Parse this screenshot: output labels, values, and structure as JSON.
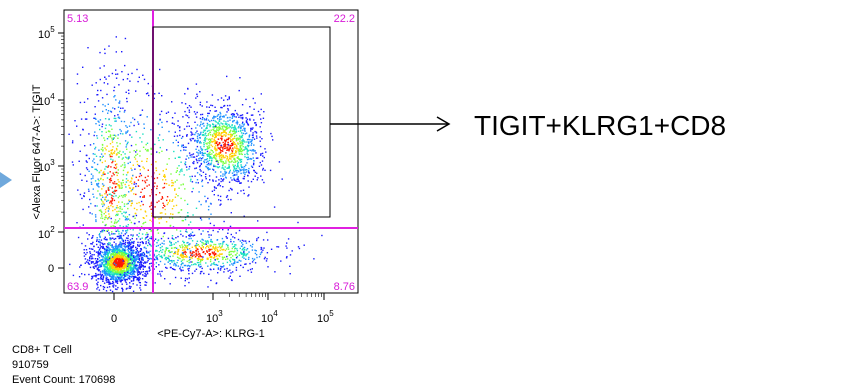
{
  "chart_data": {
    "type": "scatter",
    "subtype": "flow-cytometry-density-dot-plot",
    "xlabel": "<PE-Cy7-A>: KLRG-1",
    "ylabel": "<Alexa Fluor 647-A>: TIGIT",
    "x_scale": "biexponential",
    "y_scale": "biexponential",
    "x_ticks": [
      {
        "value": 0,
        "label": "0"
      },
      {
        "value": 1000,
        "label": "10",
        "exp": "3"
      },
      {
        "value": 10000,
        "label": "10",
        "exp": "4"
      },
      {
        "value": 100000,
        "label": "10",
        "exp": "5"
      }
    ],
    "y_ticks": [
      {
        "value": 0,
        "label": "0"
      },
      {
        "value": 100,
        "label": "10",
        "exp": "2"
      },
      {
        "value": 1000,
        "label": "10",
        "exp": "3"
      },
      {
        "value": 10000,
        "label": "10",
        "exp": "4"
      },
      {
        "value": 100000,
        "label": "10",
        "exp": "5"
      }
    ],
    "quadrant_threshold": {
      "x": 300,
      "y": 120
    },
    "quadrants": [
      {
        "position": "top-left",
        "value": "5.13"
      },
      {
        "position": "top-right",
        "value": "22.2"
      },
      {
        "position": "bottom-left",
        "value": "63.9"
      },
      {
        "position": "bottom-right",
        "value": "8.76"
      }
    ],
    "gate": {
      "x_min": 300,
      "x_max": 130000,
      "y_min": 180,
      "y_max": 130000,
      "label": "TIGIT+KLRG1+CD8"
    },
    "populations": [
      {
        "name": "",
        "x_center": 0,
        "y_center": 0,
        "relative_density": "high"
      },
      {
        "name": "",
        "x_center": 2500,
        "y_center": 2000,
        "relative_density": "medium"
      },
      {
        "name": "",
        "x_center": 1500,
        "y_center": 40,
        "relative_density": "low"
      }
    ],
    "colors": {
      "quadrant_line": "#e020e0",
      "gate": "#000000",
      "density_low": "#1a1aff",
      "density_high": "#ff1a00"
    }
  },
  "sample": {
    "population": "CD8+ T Cell",
    "sample_id": "910759",
    "event_count_text": "Event Count: 170698"
  },
  "callout": {
    "label": "TIGIT+KLRG1+CD8"
  },
  "colors": {
    "arrow_left_fill": "#6fa8dc"
  }
}
